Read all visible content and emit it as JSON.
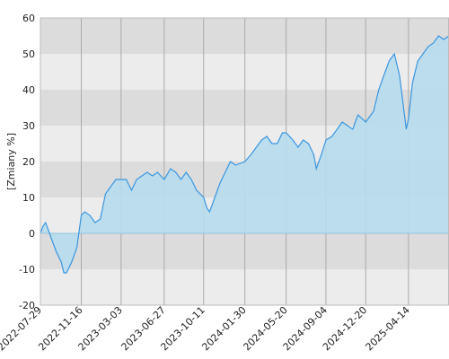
{
  "chart_data": {
    "type": "area",
    "y_label": "[Zmiany %]",
    "x": [
      "2022-07-29",
      "2022-08-05",
      "2022-08-12",
      "2022-08-26",
      "2022-09-09",
      "2022-09-23",
      "2022-09-30",
      "2022-10-07",
      "2022-10-21",
      "2022-11-04",
      "2022-11-16",
      "2022-11-25",
      "2022-12-09",
      "2022-12-23",
      "2023-01-06",
      "2023-01-20",
      "2023-02-03",
      "2023-02-17",
      "2023-03-03",
      "2023-03-17",
      "2023-03-31",
      "2023-04-14",
      "2023-04-28",
      "2023-05-12",
      "2023-05-26",
      "2023-06-09",
      "2023-06-27",
      "2023-07-14",
      "2023-07-28",
      "2023-08-11",
      "2023-08-25",
      "2023-09-08",
      "2023-09-22",
      "2023-10-11",
      "2023-10-20",
      "2023-10-27",
      "2023-11-10",
      "2023-11-24",
      "2023-12-08",
      "2023-12-22",
      "2024-01-05",
      "2024-01-30",
      "2024-02-16",
      "2024-03-01",
      "2024-03-15",
      "2024-03-29",
      "2024-04-12",
      "2024-04-26",
      "2024-05-10",
      "2024-05-20",
      "2024-06-07",
      "2024-06-21",
      "2024-07-05",
      "2024-07-19",
      "2024-08-02",
      "2024-08-09",
      "2024-08-23",
      "2024-09-04",
      "2024-09-20",
      "2024-10-04",
      "2024-10-18",
      "2024-11-01",
      "2024-11-15",
      "2024-11-29",
      "2024-12-20",
      "2025-01-10",
      "2025-01-24",
      "2025-02-07",
      "2025-02-21",
      "2025-03-07",
      "2025-03-21",
      "2025-04-08",
      "2025-04-14",
      "2025-04-25",
      "2025-05-09",
      "2025-05-23",
      "2025-06-06",
      "2025-06-20",
      "2025-07-04",
      "2025-07-18",
      "2025-08-01"
    ],
    "series": [
      {
        "color": "#3a96e0",
        "fill": "#b7dcee",
        "values": [
          0,
          2,
          3,
          -1,
          -5,
          -8,
          -11,
          -11,
          -8,
          -4,
          5,
          6,
          5,
          3,
          4,
          11,
          13,
          15,
          15,
          15,
          12,
          15,
          16,
          17,
          16,
          17,
          15,
          18,
          17,
          15,
          17,
          15,
          12,
          10,
          7,
          6,
          10,
          14,
          17,
          20,
          19,
          20,
          22,
          24,
          26,
          27,
          25,
          25,
          28,
          28,
          26,
          24,
          26,
          25,
          22,
          18,
          22,
          26,
          27,
          29,
          31,
          30,
          29,
          33,
          31,
          34,
          40,
          44,
          48,
          50,
          44,
          29,
          32,
          42,
          48,
          50,
          52,
          53,
          55,
          54,
          55
        ]
      }
    ],
    "xlim": [
      "2022-07-29",
      "2025-08-01"
    ],
    "xticks": [
      "2022-07-29",
      "2022-11-16",
      "2023-03-03",
      "2023-06-27",
      "2023-10-11",
      "2024-01-30",
      "2024-05-20",
      "2024-09-04",
      "2024-12-20",
      "2025-04-14"
    ],
    "ylim": [
      -20,
      60
    ],
    "yticks": [
      -20,
      -10,
      0,
      10,
      20,
      30,
      40,
      50,
      60
    ],
    "grid": true
  }
}
